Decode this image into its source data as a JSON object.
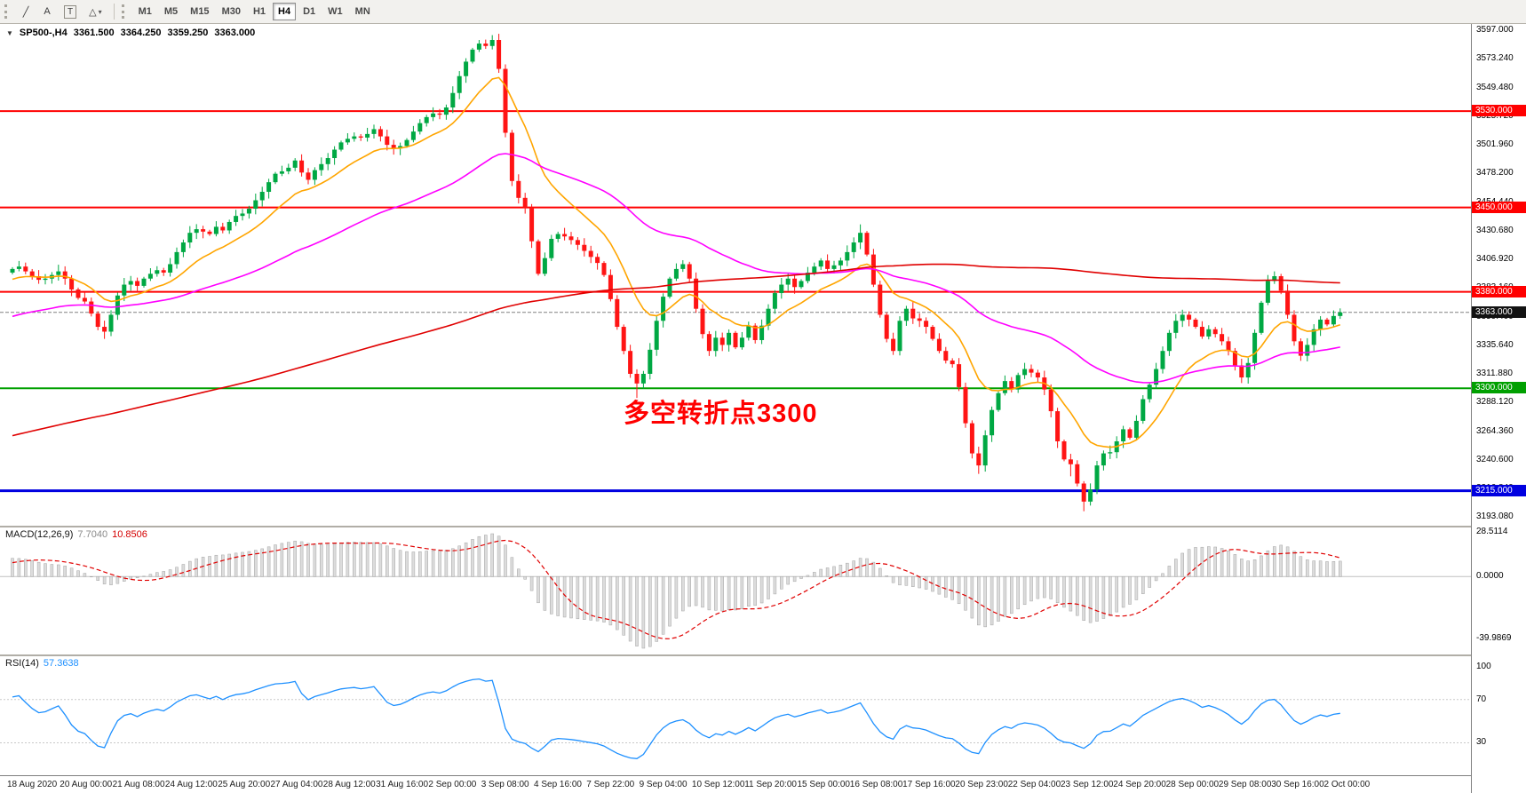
{
  "toolbar": {
    "tools": [
      {
        "icon": "trendline-icon",
        "glyph": "╱"
      },
      {
        "icon": "text-tool-icon",
        "glyph": "A"
      },
      {
        "icon": "label-tool-icon",
        "glyph": "T"
      },
      {
        "icon": "shapes-tool-icon",
        "glyph": "△"
      }
    ],
    "shapes_caret": "▾",
    "timeframes": [
      {
        "label": "M1",
        "active": false
      },
      {
        "label": "M5",
        "active": false
      },
      {
        "label": "M15",
        "active": false
      },
      {
        "label": "M30",
        "active": false
      },
      {
        "label": "H1",
        "active": false
      },
      {
        "label": "H4",
        "active": true
      },
      {
        "label": "D1",
        "active": false
      },
      {
        "label": "W1",
        "active": false
      },
      {
        "label": "MN",
        "active": false
      }
    ]
  },
  "header": {
    "menu_icon": "▼",
    "symbol": "SP500-,H4",
    "open": "3361.500",
    "high": "3364.250",
    "low": "3359.250",
    "close": "3363.000"
  },
  "annotation": {
    "text": "多空转折点3300",
    "color": "#ff0000"
  },
  "levels": [
    {
      "value": 3530,
      "label": "3530.000",
      "color": "#ff0000",
      "width": 2
    },
    {
      "value": 3450,
      "label": "3450.000",
      "color": "#ff0000",
      "width": 2
    },
    {
      "value": 3380,
      "label": "3380.000",
      "color": "#ff0000",
      "width": 2
    },
    {
      "value": 3300,
      "label": "3300.000",
      "color": "#00a000",
      "width": 2
    },
    {
      "value": 3215,
      "label": "3215.000",
      "color": "#0000e0",
      "width": 3
    }
  ],
  "current_price": {
    "value": 3363,
    "label": "3363.000",
    "box_color": "#121212",
    "line_color": "#808080"
  },
  "price_axis": {
    "labels": [
      3597.0,
      3573.24,
      3549.48,
      3525.72,
      3501.96,
      3478.2,
      3454.44,
      3430.68,
      3406.92,
      3383.16,
      3359.4,
      3335.64,
      3311.88,
      3288.12,
      3264.36,
      3240.6,
      3216.84,
      3193.08
    ]
  },
  "time_axis": {
    "labels": [
      "18 Aug 2020",
      "20 Aug 00:00",
      "21 Aug 08:00",
      "24 Aug 12:00",
      "25 Aug 20:00",
      "27 Aug 04:00",
      "28 Aug 12:00",
      "31 Aug 16:00",
      "2 Sep 00:00",
      "3 Sep 08:00",
      "4 Sep 16:00",
      "7 Sep 22:00",
      "9 Sep 04:00",
      "10 Sep 12:00",
      "11 Sep 20:00",
      "15 Sep 00:00",
      "16 Sep 08:00",
      "17 Sep 16:00",
      "20 Sep 23:00",
      "22 Sep 04:00",
      "23 Sep 12:00",
      "24 Sep 20:00",
      "28 Sep 00:00",
      "29 Sep 08:00",
      "30 Sep 16:00",
      "2 Oct 00:00"
    ]
  },
  "indicators": {
    "macd": {
      "label": "MACD(12,26,9)",
      "value_main": "7.7040",
      "value_signal": "10.8506",
      "axis": [
        28.5114,
        0.0,
        -39.9869
      ],
      "histogram_color": "#dcdcdc",
      "histogram_border": "#a4a4a4",
      "signal_color": "#e00000"
    },
    "rsi": {
      "label": "RSI(14)",
      "value": "57.3638",
      "axis": [
        100,
        70,
        30
      ],
      "levels": [
        70,
        30
      ],
      "line_color": "#1e90ff"
    }
  },
  "chart_data": [
    {
      "type": "candlestick",
      "symbol": "SP500-",
      "timeframe": "H4",
      "title": "SP500-,H4 3361.500 3364.250 3359.250 3363.000",
      "up_color": "#00a843",
      "down_color": "#ff1414",
      "y_range": [
        3186,
        3603
      ],
      "horizontal_lines": [
        3530,
        3450,
        3380,
        3300,
        3215
      ],
      "last_close": 3363,
      "first_open": 3396,
      "closes": [
        3399,
        3401,
        3397,
        3393,
        3390,
        3391,
        3394,
        3397,
        3391,
        3382,
        3375,
        3372,
        3362,
        3351,
        3347,
        3361,
        3377,
        3386,
        3389,
        3385,
        3391,
        3395,
        3398,
        3396,
        3403,
        3413,
        3421,
        3429,
        3432,
        3430,
        3428,
        3434,
        3431,
        3438,
        3443,
        3445,
        3449,
        3456,
        3463,
        3471,
        3478,
        3480,
        3483,
        3489,
        3479,
        3473,
        3481,
        3486,
        3491,
        3498,
        3504,
        3507,
        3509,
        3508,
        3511,
        3515,
        3509,
        3502,
        3499,
        3501,
        3506,
        3513,
        3520,
        3525,
        3528,
        3527,
        3533,
        3545,
        3559,
        3571,
        3581,
        3586,
        3584,
        3589,
        3565,
        3512,
        3472,
        3458,
        3450,
        3422,
        3395,
        3408,
        3424,
        3428,
        3426,
        3423,
        3419,
        3414,
        3409,
        3404,
        3394,
        3374,
        3351,
        3331,
        3312,
        3304,
        3312,
        3332,
        3356,
        3376,
        3391,
        3399,
        3403,
        3391,
        3366,
        3345,
        3331,
        3342,
        3336,
        3346,
        3334,
        3342,
        3352,
        3340,
        3352,
        3366,
        3379,
        3386,
        3391,
        3384,
        3389,
        3396,
        3401,
        3406,
        3399,
        3402,
        3406,
        3413,
        3421,
        3429,
        3411,
        3386,
        3361,
        3341,
        3331,
        3356,
        3366,
        3358,
        3356,
        3351,
        3341,
        3331,
        3323,
        3320,
        3301,
        3271,
        3246,
        3236,
        3261,
        3282,
        3296,
        3306,
        3299,
        3311,
        3316,
        3313,
        3309,
        3299,
        3281,
        3256,
        3241,
        3237,
        3221,
        3206,
        3216,
        3236,
        3246,
        3247,
        3256,
        3266,
        3259,
        3273,
        3291,
        3303,
        3316,
        3331,
        3346,
        3356,
        3361,
        3357,
        3351,
        3343,
        3349,
        3345,
        3339,
        3331,
        3319,
        3309,
        3321,
        3346,
        3371,
        3389,
        3393,
        3381,
        3361,
        3339,
        3327,
        3336,
        3349,
        3357,
        3353,
        3360,
        3363
      ],
      "wick_overrides": {
        "14": {
          "low": 3341
        },
        "71": {
          "high": 3589
        },
        "73": {
          "high": 3593
        },
        "95": {
          "low": 3292
        },
        "129": {
          "high": 3436
        },
        "147": {
          "low": 3229
        },
        "161": {
          "low": 3227
        },
        "163": {
          "low": 3198
        },
        "191": {
          "high": 3394
        },
        "192": {
          "high": 3397
        }
      },
      "moving_averages": [
        {
          "period": 13,
          "method": "EMA",
          "color": "#ffa500"
        },
        {
          "period": 55,
          "method": "EMA",
          "color": "#ff00ff"
        },
        {
          "period": 200,
          "method": "SMA",
          "color": "#e00000"
        }
      ]
    },
    {
      "type": "macd",
      "params": [
        12,
        26,
        9
      ],
      "label": "MACD(12,26,9)",
      "current_main": 7.704,
      "current_signal": 10.8506,
      "axis_range": [
        -39.9869,
        28.5114
      ]
    },
    {
      "type": "rsi",
      "period": 14,
      "label": "RSI(14)",
      "current": 57.3638,
      "levels": [
        70,
        30
      ],
      "axis_range": [
        0,
        100
      ]
    }
  ]
}
